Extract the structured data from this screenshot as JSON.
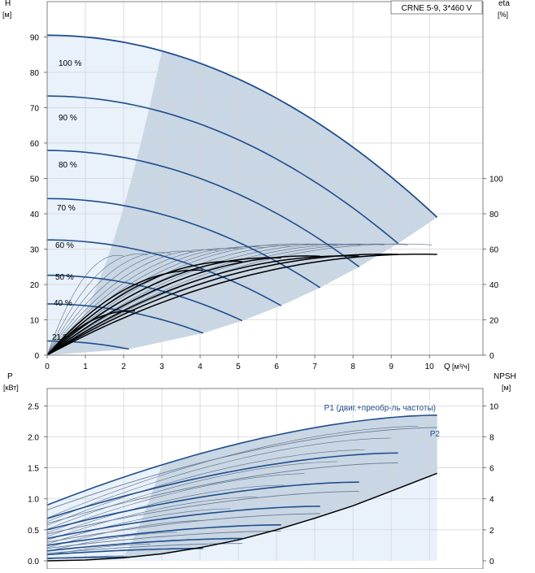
{
  "chart_data": [
    {
      "type": "line",
      "title": "CRNE 5-9, 3*460 V",
      "y_label_left": "H",
      "y_unit_left": "[м]",
      "y_label_right": "eta",
      "y_unit_right": "[%]",
      "x_label": "Q",
      "x_unit": "[м³/ч]",
      "xlim": [
        0,
        11.4
      ],
      "ylim_left": [
        0,
        100
      ],
      "ylim_right": [
        0,
        200
      ],
      "x_ticks": [
        0,
        1,
        2,
        3,
        4,
        5,
        6,
        7,
        8,
        9,
        10
      ],
      "y_ticks_left": [
        0,
        10,
        20,
        30,
        40,
        50,
        60,
        70,
        80,
        90
      ],
      "y_ticks_right": [
        0,
        20,
        40,
        60,
        80,
        100
      ],
      "grid": true,
      "colors": {
        "curve": "#1f4e8c",
        "region_dark": "#c9d6e4",
        "region_light": "#e9f1fb",
        "eta": "#000000",
        "thin_line": "#5a6f8a",
        "grid": "#d4d4d4"
      },
      "speed_labels": [
        "100 %",
        "90 %",
        "80 %",
        "70 %",
        "60 %",
        "50 %",
        "40 %",
        "21 %"
      ],
      "series": [
        {
          "name": "100 %",
          "H0": 90.5,
          "Qmax": 10.2,
          "Hend": 39
        },
        {
          "name": "90 %",
          "H0": 73.3,
          "Qmax": 9.18,
          "Hend": 31.6
        },
        {
          "name": "80 %",
          "H0": 57.9,
          "Qmax": 8.16,
          "Hend": 25
        },
        {
          "name": "70 %",
          "H0": 44.3,
          "Qmax": 7.14,
          "Hend": 19.1
        },
        {
          "name": "60 %",
          "H0": 32.6,
          "Qmax": 6.12,
          "Hend": 14
        },
        {
          "name": "50 %",
          "H0": 22.6,
          "Qmax": 5.1,
          "Hend": 9.75
        },
        {
          "name": "40 %",
          "H0": 14.5,
          "Qmax": 4.08,
          "Hend": 6.24
        },
        {
          "name": "21 %",
          "H0": 4.0,
          "Qmax": 2.14,
          "Hend": 1.72
        }
      ],
      "eta_curves": [
        {
          "Qmax": 10.2,
          "peak": 57
        },
        {
          "Qmax": 9.18,
          "peak": 57
        },
        {
          "Qmax": 8.16,
          "peak": 56
        },
        {
          "Qmax": 7.14,
          "peak": 56
        },
        {
          "Qmax": 6.12,
          "peak": 55
        },
        {
          "Qmax": 5.1,
          "peak": 53
        },
        {
          "Qmax": 4.08,
          "peak": 48
        },
        {
          "Qmax": 2.3,
          "peak": 25
        }
      ]
    },
    {
      "type": "line",
      "y_label_left": "P",
      "y_unit_left": "[кВт]",
      "y_label_right": "NPSH",
      "y_unit_right": "[м]",
      "xlim": [
        0,
        11.4
      ],
      "ylim_left": [
        0,
        2.78
      ],
      "ylim_right": [
        0,
        11.12
      ],
      "y_ticks_left": [
        "0.0",
        "0.5",
        "1.0",
        "1.5",
        "2.0",
        "2.5"
      ],
      "y_ticks_left_values": [
        0,
        0.5,
        1,
        1.5,
        2,
        2.5
      ],
      "y_ticks_right": [
        0,
        2,
        4,
        6,
        8,
        10
      ],
      "grid": true,
      "p1_label": "P1 (двиг.+преобр-ль частоты)",
      "p2_label": "P2",
      "series": [
        {
          "name": "P1 100 %",
          "Qmax": 10.2,
          "P0": 0.9,
          "Pend": 2.35
        },
        {
          "name": "P1 90 %",
          "Qmax": 9.18,
          "P0": 0.68,
          "Pend": 1.74
        },
        {
          "name": "P1 80 %",
          "Qmax": 8.16,
          "P0": 0.5,
          "Pend": 1.27
        },
        {
          "name": "P1 70 %",
          "Qmax": 7.14,
          "P0": 0.36,
          "Pend": 0.88
        },
        {
          "name": "P1 60 %",
          "Qmax": 6.12,
          "P0": 0.25,
          "Pend": 0.58
        },
        {
          "name": "P1 50 %",
          "Qmax": 5.1,
          "P0": 0.16,
          "Pend": 0.36
        },
        {
          "name": "P1 40 %",
          "Qmax": 4.08,
          "P0": 0.1,
          "Pend": 0.2
        },
        {
          "name": "P1 21 %",
          "Qmax": 2.14,
          "P0": 0.04,
          "Pend": 0.06
        }
      ],
      "p2_series": [
        {
          "name": "P2 100 %",
          "Qmax": 10.2,
          "P0": 0.82,
          "Pend": 2.15
        },
        {
          "name": "P2 90 %",
          "Qmax": 9.18,
          "P0": 0.6,
          "Pend": 1.58
        },
        {
          "name": "P2 80 %",
          "Qmax": 8.16,
          "P0": 0.43,
          "Pend": 1.12
        },
        {
          "name": "P2 70 %",
          "Qmax": 7.14,
          "P0": 0.3,
          "Pend": 0.76
        },
        {
          "name": "P2 60 %",
          "Qmax": 6.12,
          "P0": 0.2,
          "Pend": 0.48
        },
        {
          "name": "P2 50 %",
          "Qmax": 5.1,
          "P0": 0.12,
          "Pend": 0.28
        }
      ],
      "npsh": {
        "x": [
          0,
          1,
          2,
          3,
          4,
          5,
          6,
          7,
          8,
          9,
          10.2
        ],
        "y": [
          0,
          0.05,
          0.2,
          0.45,
          0.85,
          1.35,
          2.0,
          2.75,
          3.55,
          4.5,
          5.65
        ]
      }
    }
  ]
}
